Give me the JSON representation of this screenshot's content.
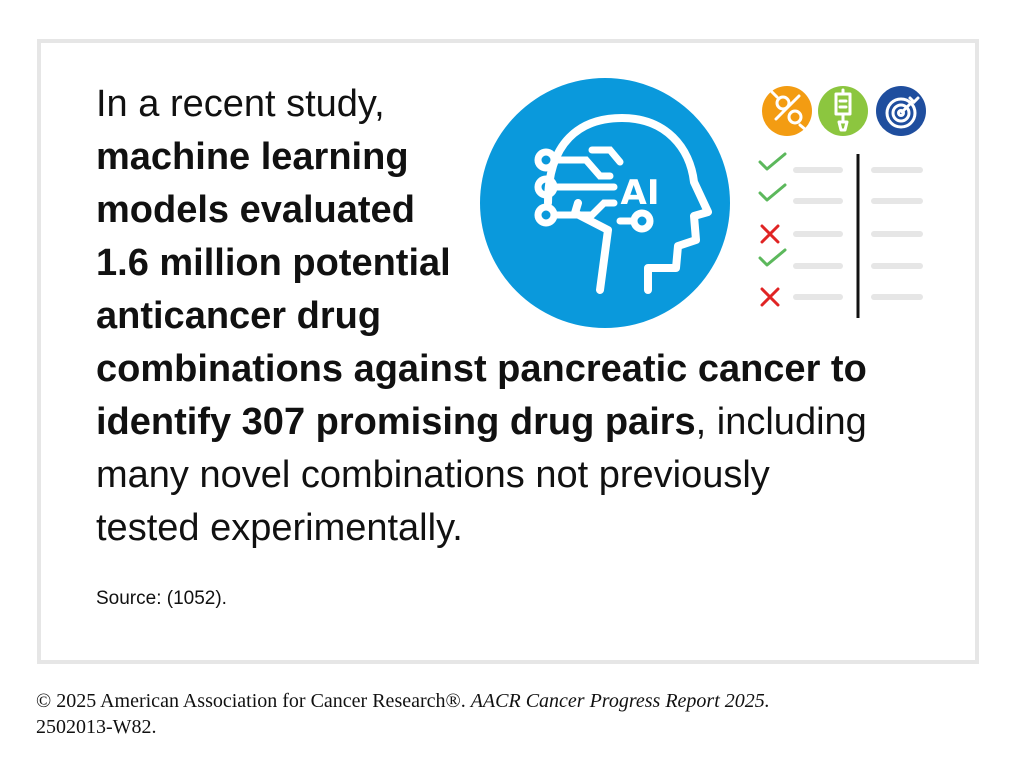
{
  "statement": {
    "line1": "In a recent study,",
    "line2": "machine learning",
    "line3": "models evaluated",
    "line4": "1.6 million potential",
    "line5": "anticancer drug",
    "line6": "combinations against pancreatic cancer to",
    "line7_bold": "identify 307 promising drug pairs",
    "line7_rest": ", including",
    "line8": "many novel combinations not previously",
    "line9": "tested experimentally."
  },
  "source": "Source: (1052).",
  "footer": {
    "copyright": "© 2025 American Association for Cancer Research®.",
    "report": "AACR Cancer Progress Report 2025.",
    "code": "2502013-W82."
  },
  "icons": {
    "head_badge": "AI",
    "head_icon": "ai-head-icon",
    "top_icons": [
      "cut-vessel-icon",
      "iv-drip-icon",
      "target-icon"
    ],
    "checklist": [
      "check",
      "check",
      "cross",
      "check",
      "cross"
    ]
  },
  "colors": {
    "head_circle": "#0a99dc",
    "orange": "#f39c12",
    "green": "#8cc63f",
    "navy": "#1f4e9e",
    "check": "#5cb85c",
    "cross": "#e02424",
    "card_border": "#e6e6e6"
  }
}
